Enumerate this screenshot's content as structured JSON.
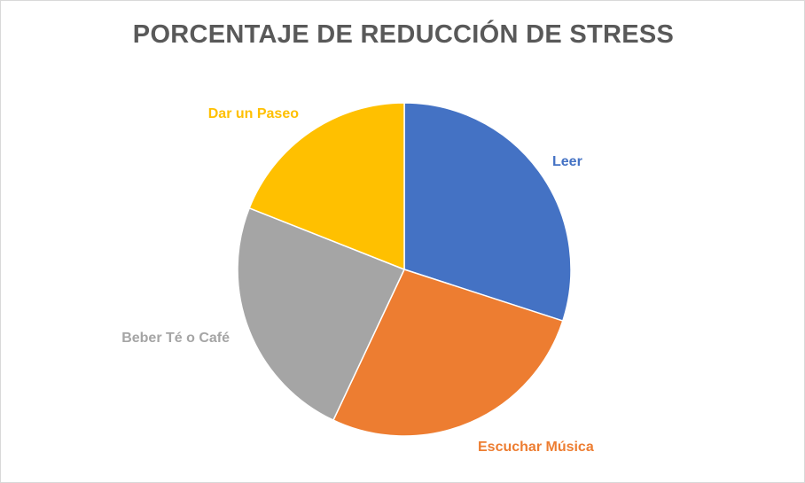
{
  "chart_data": {
    "type": "pie",
    "title": "PORCENTAJE DE REDUCCIÓN DE STRESS",
    "categories": [
      "Leer",
      "Escuchar Música",
      "Beber Té o Café",
      "Dar un Paseo"
    ],
    "values": [
      30,
      27,
      24,
      19
    ],
    "colors": [
      "#4472C4",
      "#ED7D31",
      "#A5A5A5",
      "#FFC000"
    ],
    "start_angle": "12 o'clock",
    "direction": "clockwise",
    "labels_outside": true,
    "legend": "none"
  }
}
